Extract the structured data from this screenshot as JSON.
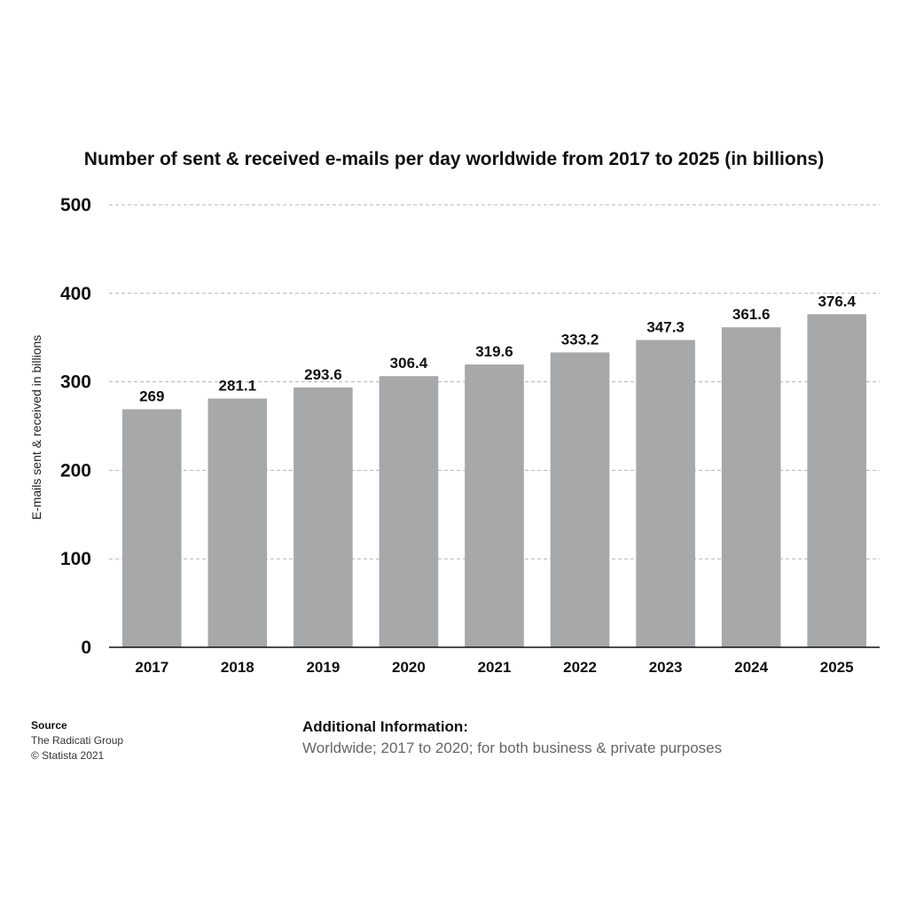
{
  "chart_data": {
    "type": "bar",
    "title": "Number of sent & received e-mails per day worldwide from 2017 to 2025 (in billions)",
    "xlabel": "",
    "ylabel": "E-mails sent & received in billions",
    "categories": [
      "2017",
      "2018",
      "2019",
      "2020",
      "2021",
      "2022",
      "2023",
      "2024",
      "2025"
    ],
    "values": [
      269,
      281.1,
      293.6,
      306.4,
      319.6,
      333.2,
      347.3,
      361.6,
      376.4
    ],
    "value_labels": [
      "269",
      "281.1",
      "293.6",
      "306.4",
      "319.6",
      "333.2",
      "347.3",
      "361.6",
      "376.4"
    ],
    "ylim": [
      0,
      500
    ],
    "yticks": [
      0,
      100,
      200,
      300,
      400,
      500
    ],
    "grid": true,
    "bar_color": "#a7a8aa"
  },
  "source": {
    "heading": "Source",
    "lines": [
      "The Radicati Group",
      "© Statista 2021"
    ]
  },
  "additional_info": {
    "heading": "Additional Information:",
    "text": "Worldwide; 2017 to 2020; for both business & private purposes"
  }
}
